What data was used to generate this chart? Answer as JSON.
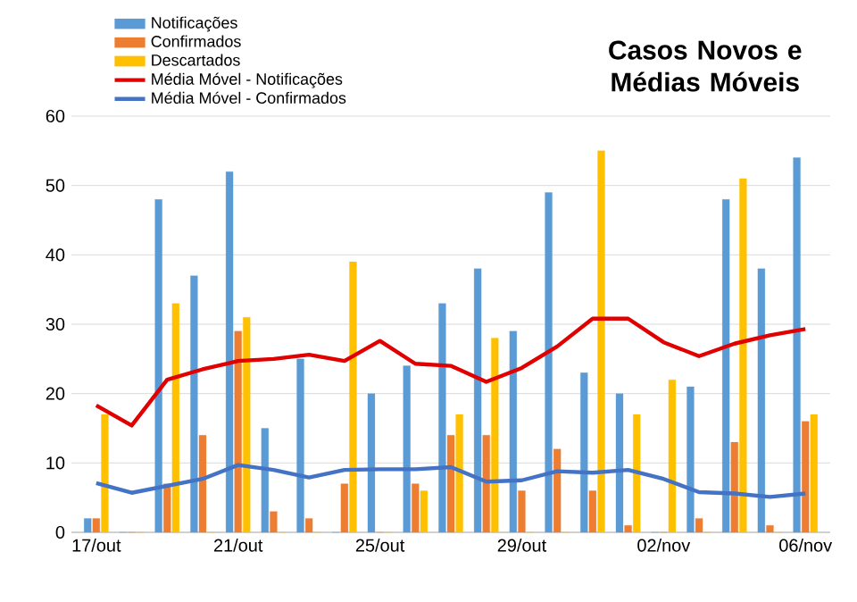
{
  "chart_data": {
    "type": "bar",
    "title": "Casos Novos e Médias Móveis",
    "categories": [
      "17/out",
      null,
      null,
      null,
      "21/out",
      null,
      null,
      null,
      "25/out",
      null,
      null,
      null,
      "29/out",
      null,
      null,
      null,
      "02/nov",
      null,
      null,
      null,
      "06/nov"
    ],
    "series": [
      {
        "name": "Notificações",
        "color": "#5b9bd5",
        "values": [
          2,
          0,
          48,
          37,
          52,
          15,
          25,
          0,
          20,
          24,
          33,
          38,
          29,
          49,
          23,
          20,
          0,
          21,
          48,
          38,
          54
        ]
      },
      {
        "name": "Confirmados",
        "color": "#ed7d31",
        "values": [
          2,
          0,
          7,
          14,
          29,
          3,
          2,
          7,
          0,
          7,
          14,
          14,
          6,
          12,
          6,
          1,
          0,
          2,
          13,
          1,
          16
        ]
      },
      {
        "name": "Descartados",
        "color": "#ffc000",
        "values": [
          17,
          0,
          33,
          0,
          31,
          0,
          0,
          39,
          0,
          6,
          17,
          28,
          0,
          0,
          55,
          17,
          22,
          0,
          51,
          0,
          17
        ]
      },
      {
        "name": "Média Móvel - Notificações",
        "type": "line",
        "color": "#e00000",
        "values": [
          18.3,
          15.4,
          22,
          23.5,
          24.7,
          25,
          25.6,
          24.7,
          27.6,
          24.3,
          24,
          21.7,
          23.7,
          26.8,
          30.8,
          30.8,
          27.4,
          25.4,
          27.2,
          28.4,
          29.3
        ]
      },
      {
        "name": "Média Móvel - Confirmados",
        "type": "line",
        "color": "#4472c4",
        "values": [
          7.1,
          5.7,
          6.7,
          7.7,
          9.7,
          9,
          7.9,
          9,
          9.1,
          9.1,
          9.4,
          7.3,
          7.5,
          8.8,
          8.6,
          9,
          7.7,
          5.8,
          5.6,
          5.1,
          5.6
        ]
      }
    ],
    "ylim": [
      0,
      60
    ],
    "yticks": [
      0,
      10,
      20,
      30,
      40,
      50,
      60
    ],
    "grid": "y",
    "legend": "top left"
  }
}
